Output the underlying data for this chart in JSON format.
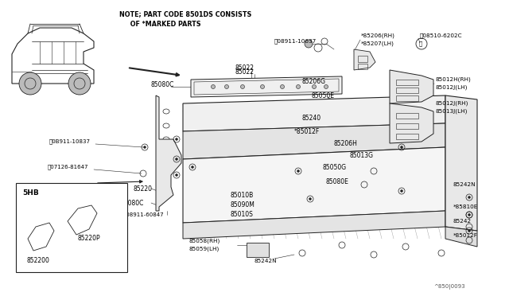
{
  "bg_color": "#ffffff",
  "fig_width": 6.4,
  "fig_height": 3.72,
  "dpi": 100,
  "diagram_id": "^850|0093",
  "line_color": "#222222",
  "note_line1": "NOTE; PART CODE 8501DS CONSISTS",
  "note_line2": "     OF *MARKED PARTS"
}
